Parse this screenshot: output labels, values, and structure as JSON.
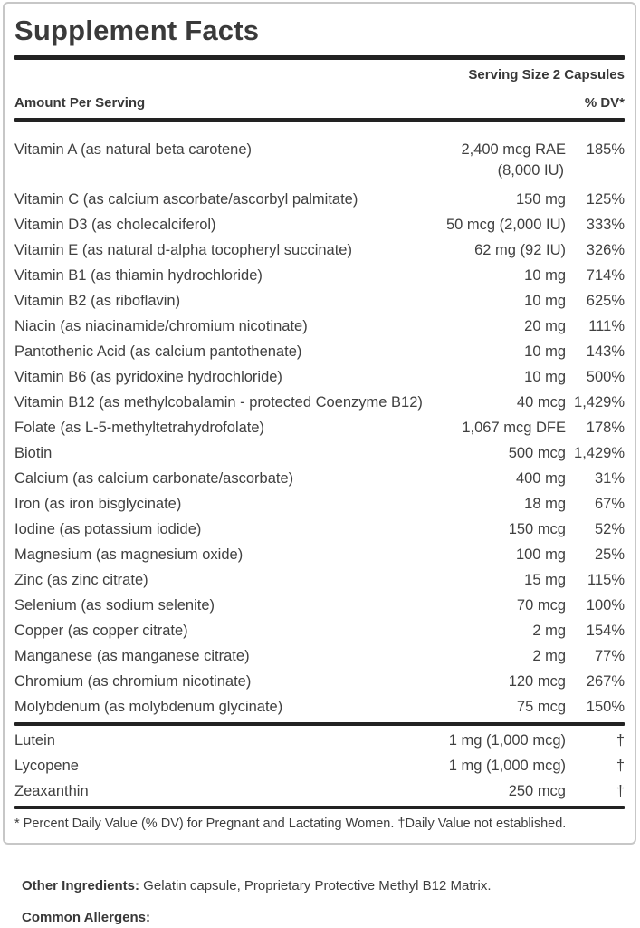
{
  "panel": {
    "title": "Supplement Facts",
    "serving_size": "Serving Size 2 Capsules",
    "columns": {
      "amount_header": "Amount Per Serving",
      "dv_header": "% DV*"
    },
    "rows": [
      {
        "name": "Vitamin A (as natural beta carotene)",
        "amount": "2,400 mcg RAE",
        "amount2": "(8,000 IU)",
        "dv": "185%"
      },
      {
        "name": "Vitamin C (as calcium ascorbate/ascorbyl palmitate)",
        "amount": "150 mg",
        "dv": "125%"
      },
      {
        "name": "Vitamin D3 (as cholecalciferol)",
        "amount": "50 mcg (2,000 IU)",
        "dv": "333%"
      },
      {
        "name": "Vitamin E (as natural d-alpha tocopheryl succinate)",
        "amount": "62 mg (92 IU)",
        "dv": "326%"
      },
      {
        "name": "Vitamin B1 (as thiamin hydrochloride)",
        "amount": "10 mg",
        "dv": "714%"
      },
      {
        "name": "Vitamin B2 (as riboflavin)",
        "amount": "10 mg",
        "dv": "625%"
      },
      {
        "name": "Niacin (as niacinamide/chromium nicotinate)",
        "amount": "20 mg",
        "dv": "111%"
      },
      {
        "name": "Pantothenic Acid (as calcium pantothenate)",
        "amount": "10 mg",
        "dv": "143%"
      },
      {
        "name": "Vitamin B6 (as pyridoxine hydrochloride)",
        "amount": "10 mg",
        "dv": "500%"
      },
      {
        "name": "Vitamin B12 (as methylcobalamin - protected Coenzyme B12)",
        "amount": "40 mcg",
        "dv": "1,429%"
      },
      {
        "name": "Folate (as L-5-methyltetrahydrofolate)",
        "amount": "1,067 mcg DFE",
        "dv": "178%"
      },
      {
        "name": "Biotin",
        "amount": "500 mcg",
        "dv": "1,429%"
      },
      {
        "name": "Calcium (as calcium carbonate/ascorbate)",
        "amount": "400 mg",
        "dv": "31%"
      },
      {
        "name": "Iron (as iron bisglycinate)",
        "amount": "18 mg",
        "dv": "67%"
      },
      {
        "name": "Iodine (as potassium iodide)",
        "amount": "150 mcg",
        "dv": "52%"
      },
      {
        "name": "Magnesium (as magnesium oxide)",
        "amount": "100 mg",
        "dv": "25%"
      },
      {
        "name": "Zinc (as zinc citrate)",
        "amount": "15 mg",
        "dv": "115%"
      },
      {
        "name": "Selenium (as sodium selenite)",
        "amount": "70 mcg",
        "dv": "100%"
      },
      {
        "name": "Copper (as copper citrate)",
        "amount": "2 mg",
        "dv": "154%"
      },
      {
        "name": "Manganese (as manganese citrate)",
        "amount": "2 mg",
        "dv": "77%"
      },
      {
        "name": "Chromium (as chromium nicotinate)",
        "amount": "120 mcg",
        "dv": "267%"
      },
      {
        "name": "Molybdenum (as molybdenum glycinate)",
        "amount": "75 mcg",
        "dv": "150%"
      }
    ],
    "secondary_rows": [
      {
        "name": "Lutein",
        "amount": "1 mg (1,000 mcg)",
        "dv": "†"
      },
      {
        "name": "Lycopene",
        "amount": "1 mg (1,000 mcg)",
        "dv": "†"
      },
      {
        "name": "Zeaxanthin",
        "amount": "250 mcg",
        "dv": "†"
      }
    ],
    "footnote": "* Percent Daily Value (% DV) for Pregnant and Lactating Women. †Daily Value not established."
  },
  "below": {
    "other_ingredients_label": "Other Ingredients:",
    "other_ingredients_text": " Gelatin capsule, Proprietary Protective Methyl B12 Matrix.",
    "allergens_label": "Common Allergens:"
  },
  "colors": {
    "text": "#404040",
    "heading_text": "#383838",
    "rule": "#222222",
    "panel_border": "#c7c7c7",
    "background": "#ffffff"
  }
}
